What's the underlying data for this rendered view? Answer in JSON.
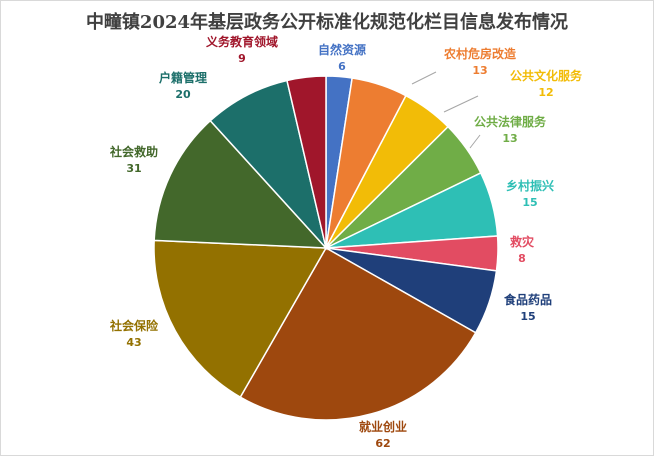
{
  "chart_data": {
    "type": "pie",
    "title": "中疃镇2024年基层政务公开标准化规范化栏目信息发布情况",
    "start_angle_deg": 0,
    "direction": "clockwise",
    "slices": [
      {
        "label": "自然资源",
        "value": 6,
        "color": "#4472c4"
      },
      {
        "label": "农村危房改造",
        "value": 13,
        "color": "#ed7d31"
      },
      {
        "label": "公共文化服务",
        "value": 12,
        "color": "#f2bc07"
      },
      {
        "label": "公共法律服务",
        "value": 13,
        "color": "#70ad47"
      },
      {
        "label": "乡村振兴",
        "value": 15,
        "color": "#2ebfb5"
      },
      {
        "label": "救灾",
        "value": 8,
        "color": "#e24c62"
      },
      {
        "label": "食品药品",
        "value": 15,
        "color": "#1f3f7a"
      },
      {
        "label": "就业创业",
        "value": 62,
        "color": "#9e480e"
      },
      {
        "label": "社会保险",
        "value": 43,
        "color": "#937100"
      },
      {
        "label": "社会救助",
        "value": 31,
        "color": "#43682b"
      },
      {
        "label": "户籍管理",
        "value": 20,
        "color": "#1c6f6a"
      },
      {
        "label": "义务教育领域",
        "value": 9,
        "color": "#a0162b"
      }
    ]
  }
}
